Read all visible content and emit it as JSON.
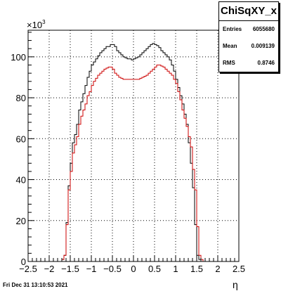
{
  "chart_data": {
    "type": "step",
    "title": "",
    "xlabel": "η",
    "ylabel": "",
    "y_multiplier": "×10",
    "y_multiplier_exp": "3",
    "xlim": [
      -2.5,
      2.5
    ],
    "ylim": [
      0,
      113
    ],
    "xticks": [
      "−2.5",
      "−2",
      "−1.5",
      "−1",
      "−0.5",
      "0",
      "0.5",
      "1",
      "1.5",
      "2",
      "2.5"
    ],
    "yticks": [
      "0",
      "20",
      "40",
      "60",
      "80",
      "100"
    ],
    "grid": true,
    "series": [
      {
        "color": "#000000",
        "x_edges_start": -1.75,
        "bin_width": 0.05,
        "values": [
          0,
          1,
          3,
          19,
          37,
          48,
          58,
          62,
          67,
          74,
          78,
          82,
          86,
          90,
          93,
          96,
          97.5,
          99,
          100.5,
          102,
          103,
          104,
          105,
          105,
          106,
          106,
          105,
          103,
          102,
          101,
          100,
          99.5,
          99,
          99,
          98.5,
          99,
          99.5,
          100,
          101,
          102,
          103,
          104,
          105,
          106,
          106.5,
          106,
          105.5,
          104.5,
          103,
          102,
          101,
          100,
          98.5,
          96,
          93,
          89,
          85,
          81,
          77,
          72,
          67,
          58,
          48,
          36,
          18,
          3,
          1,
          0
        ]
      },
      {
        "color": "#cc0000",
        "x_edges_start": -1.75,
        "bin_width": 0.05,
        "values": [
          0,
          1,
          3,
          18,
          35,
          44,
          53,
          57,
          61,
          67,
          71,
          74,
          77,
          81,
          83,
          86,
          88,
          89.5,
          91,
          92,
          93,
          94,
          94.5,
          95,
          95,
          94,
          92,
          91,
          90,
          89.5,
          89,
          89,
          89,
          89,
          89,
          89,
          89,
          89,
          89.5,
          90,
          90.5,
          91,
          92,
          93,
          94,
          95,
          96,
          96,
          95.5,
          95,
          94,
          93,
          92,
          91,
          89,
          87,
          83,
          79,
          74,
          70,
          66,
          61,
          56,
          45,
          35,
          17,
          3,
          1,
          0
        ]
      }
    ]
  },
  "statbox": {
    "title": "ChiSqXY_x",
    "rows": [
      {
        "label": "Entries",
        "value": "6055680"
      },
      {
        "label": "Mean",
        "value": "0.009139"
      },
      {
        "label": "RMS",
        "value": "0.8746"
      }
    ]
  },
  "datestamp": "Fri Dec 31 13:10:53 2021"
}
